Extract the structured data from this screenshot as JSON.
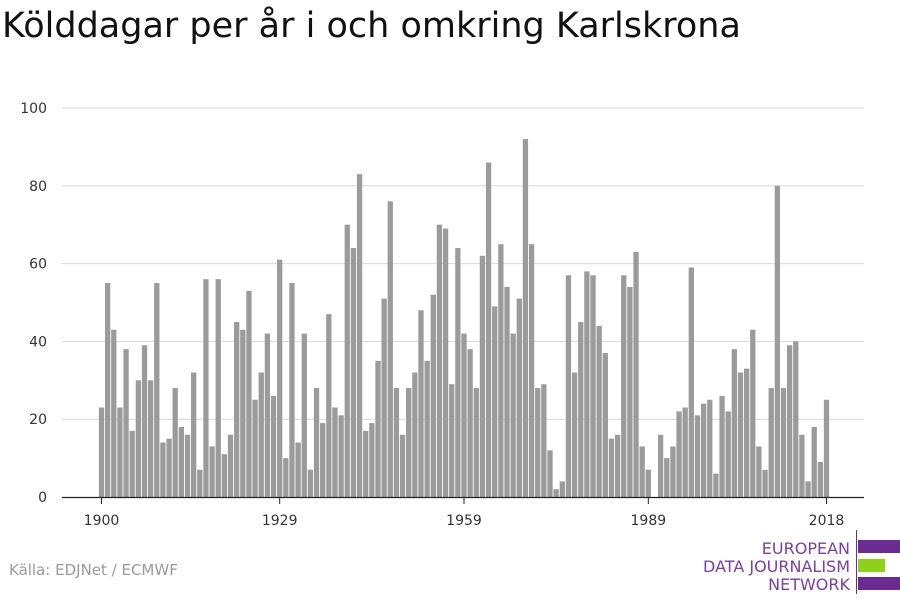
{
  "title": "Kölddagar per år i och omkring Karlskrona",
  "source": "Källa: EDJNet / ECMWF",
  "logo": {
    "lines": [
      "EUROPEAN",
      "DATA JOURNALISM",
      "NETWORK"
    ],
    "colors": {
      "purple": "#6a2c91",
      "green": "#8ed11d"
    }
  },
  "colors": {
    "bar": "#9b9b9b",
    "grid": "#d9d9d9",
    "axis": "#222222"
  },
  "chart_data": {
    "type": "bar",
    "x_start": 1900,
    "x_end": 2018,
    "xticks": [
      1900,
      1929,
      1959,
      1989,
      2018
    ],
    "yticks": [
      0,
      20,
      40,
      60,
      80,
      100
    ],
    "ylim": [
      0,
      100
    ],
    "grid": true,
    "values": [
      23,
      55,
      43,
      23,
      38,
      17,
      30,
      39,
      30,
      55,
      14,
      15,
      28,
      18,
      16,
      32,
      7,
      56,
      13,
      56,
      11,
      16,
      45,
      43,
      53,
      25,
      32,
      42,
      26,
      61,
      10,
      55,
      14,
      42,
      7,
      28,
      19,
      47,
      23,
      21,
      70,
      64,
      83,
      17,
      19,
      35,
      51,
      76,
      28,
      16,
      28,
      32,
      48,
      35,
      52,
      70,
      69,
      29,
      64,
      42,
      38,
      28,
      62,
      86,
      49,
      65,
      54,
      42,
      51,
      92,
      65,
      28,
      29,
      12,
      2,
      4,
      57,
      32,
      45,
      58,
      57,
      44,
      37,
      15,
      16,
      57,
      54,
      63,
      13,
      7,
      0,
      16,
      10,
      13,
      22,
      23,
      59,
      21,
      24,
      25,
      6,
      26,
      22,
      38,
      32,
      33,
      43,
      13,
      7,
      28,
      80,
      28,
      39,
      40,
      16,
      4,
      18,
      9,
      25
    ]
  }
}
